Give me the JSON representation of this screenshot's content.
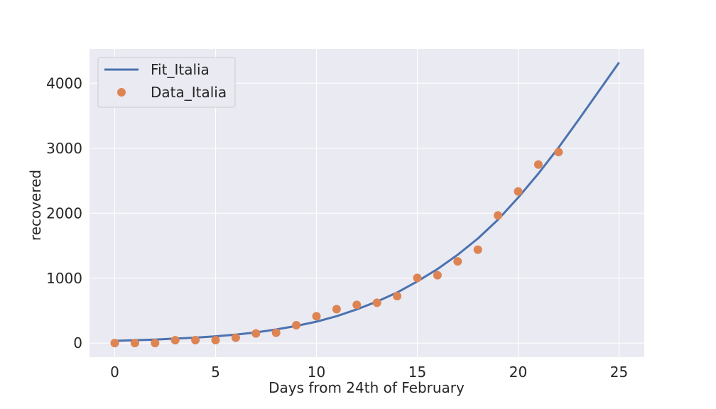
{
  "chart_data": {
    "type": "line",
    "title": "",
    "xlabel": "Days from 24th of February",
    "ylabel": "recovered",
    "xlim": [
      -1.25,
      26.25
    ],
    "ylim": [
      -216,
      4528
    ],
    "xticks": [
      0,
      5,
      10,
      15,
      20,
      25
    ],
    "yticks": [
      0,
      1000,
      2000,
      3000,
      4000
    ],
    "grid": true,
    "legend_position": "upper-left",
    "series": [
      {
        "name": "Fit_Italia",
        "kind": "line",
        "color": "#4c72b0",
        "x": [
          0,
          1,
          2,
          3,
          4,
          5,
          6,
          7,
          8,
          9,
          10,
          11,
          12,
          13,
          14,
          15,
          16,
          17,
          18,
          19,
          20,
          21,
          22,
          23,
          24,
          25
        ],
        "y": [
          35,
          45,
          55,
          70,
          85,
          105,
          130,
          165,
          210,
          265,
          330,
          415,
          520,
          640,
          780,
          950,
          1140,
          1360,
          1610,
          1900,
          2240,
          2610,
          3010,
          3440,
          3880,
          4320
        ]
      },
      {
        "name": "Data_Italia",
        "kind": "scatter",
        "color": "#dd8452",
        "x": [
          0,
          1,
          2,
          3,
          4,
          5,
          6,
          7,
          8,
          9,
          10,
          11,
          12,
          13,
          14,
          15,
          16,
          17,
          18,
          19,
          20,
          21,
          22
        ],
        "y": [
          1,
          1,
          1,
          45,
          46,
          46,
          83,
          149,
          160,
          276,
          414,
          523,
          589,
          622,
          724,
          1004,
          1045,
          1258,
          1439,
          1966,
          2335,
          2749,
          2941
        ]
      }
    ]
  },
  "style": {
    "plot_background": "#eaeaf2",
    "grid_color": "#ffffff",
    "text_color": "#262626"
  }
}
